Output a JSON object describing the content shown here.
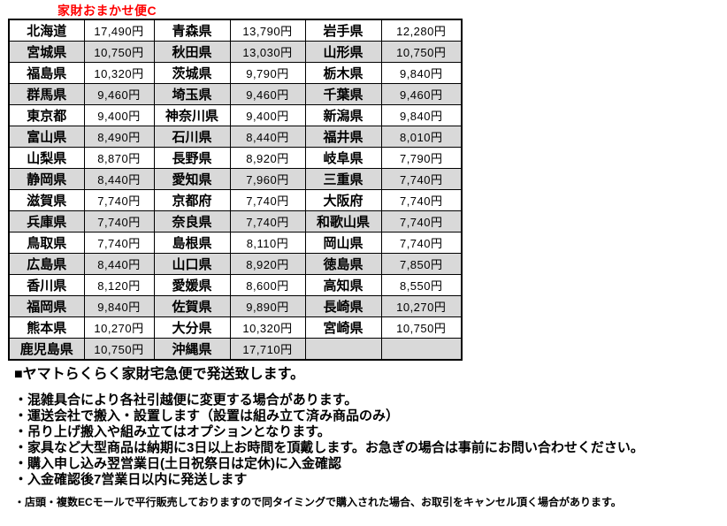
{
  "title": "家財おまかせ便C",
  "table": {
    "rows": [
      [
        {
          "pref": "北海道",
          "price": "17,490円"
        },
        {
          "pref": "青森県",
          "price": "13,790円"
        },
        {
          "pref": "岩手県",
          "price": "12,280円"
        }
      ],
      [
        {
          "pref": "宮城県",
          "price": "10,750円"
        },
        {
          "pref": "秋田県",
          "price": "13,030円"
        },
        {
          "pref": "山形県",
          "price": "10,750円"
        }
      ],
      [
        {
          "pref": "福島県",
          "price": "10,320円"
        },
        {
          "pref": "茨城県",
          "price": "9,790円"
        },
        {
          "pref": "栃木県",
          "price": "9,840円"
        }
      ],
      [
        {
          "pref": "群馬県",
          "price": "9,460円"
        },
        {
          "pref": "埼玉県",
          "price": "9,460円"
        },
        {
          "pref": "千葉県",
          "price": "9,460円"
        }
      ],
      [
        {
          "pref": "東京都",
          "price": "9,400円"
        },
        {
          "pref": "神奈川県",
          "price": "9,400円"
        },
        {
          "pref": "新潟県",
          "price": "9,840円"
        }
      ],
      [
        {
          "pref": "富山県",
          "price": "8,490円"
        },
        {
          "pref": "石川県",
          "price": "8,440円"
        },
        {
          "pref": "福井県",
          "price": "8,010円"
        }
      ],
      [
        {
          "pref": "山梨県",
          "price": "8,870円"
        },
        {
          "pref": "長野県",
          "price": "8,920円"
        },
        {
          "pref": "岐阜県",
          "price": "7,790円"
        }
      ],
      [
        {
          "pref": "静岡県",
          "price": "8,440円"
        },
        {
          "pref": "愛知県",
          "price": "7,960円"
        },
        {
          "pref": "三重県",
          "price": "7,740円"
        }
      ],
      [
        {
          "pref": "滋賀県",
          "price": "7,740円"
        },
        {
          "pref": "京都府",
          "price": "7,740円"
        },
        {
          "pref": "大阪府",
          "price": "7,740円"
        }
      ],
      [
        {
          "pref": "兵庫県",
          "price": "7,740円"
        },
        {
          "pref": "奈良県",
          "price": "7,740円"
        },
        {
          "pref": "和歌山県",
          "price": "7,740円"
        }
      ],
      [
        {
          "pref": "鳥取県",
          "price": "7,740円"
        },
        {
          "pref": "島根県",
          "price": "8,110円"
        },
        {
          "pref": "岡山県",
          "price": "7,740円"
        }
      ],
      [
        {
          "pref": "広島県",
          "price": "8,440円"
        },
        {
          "pref": "山口県",
          "price": "8,920円"
        },
        {
          "pref": "徳島県",
          "price": "7,850円"
        }
      ],
      [
        {
          "pref": "香川県",
          "price": "8,120円"
        },
        {
          "pref": "愛媛県",
          "price": "8,600円"
        },
        {
          "pref": "高知県",
          "price": "8,550円"
        }
      ],
      [
        {
          "pref": "福岡県",
          "price": "9,840円"
        },
        {
          "pref": "佐賀県",
          "price": "9,890円"
        },
        {
          "pref": "長崎県",
          "price": "10,270円"
        }
      ],
      [
        {
          "pref": "熊本県",
          "price": "10,270円"
        },
        {
          "pref": "大分県",
          "price": "10,320円"
        },
        {
          "pref": "宮崎県",
          "price": "10,750円"
        }
      ],
      [
        {
          "pref": "鹿児島県",
          "price": "10,750円"
        },
        {
          "pref": "沖縄県",
          "price": "17,710円"
        },
        {
          "pref": "",
          "price": ""
        }
      ]
    ]
  },
  "notes": {
    "heading": "■ヤマトらくらく家財宅急便で発送致します。",
    "bullets": [
      "・混雑具合により各社引越便に変更する場合があります。",
      "・運送会社で搬入・設置します（設置は組み立て済み商品のみ）",
      "・吊り上げ搬入や組み立てはオプションとなります。",
      "・家具など大型商品は納期に3日以上お時間を頂戴します。お急ぎの場合は事前にお問い合わせください。",
      "・購入申し込み翌営業日(土日祝祭日は定休)に入金確認",
      "・入金確認後7営業日以内に発送します"
    ],
    "footnote": "・店頭・複数ECモールで平行販売しておりますので同タイミングで購入された場合、お取引をキャンセル頂く場合があります。"
  },
  "colors": {
    "title_red": "#ff0000",
    "row_stripe_gray": "#d9d9d9",
    "border_black": "#000000"
  }
}
